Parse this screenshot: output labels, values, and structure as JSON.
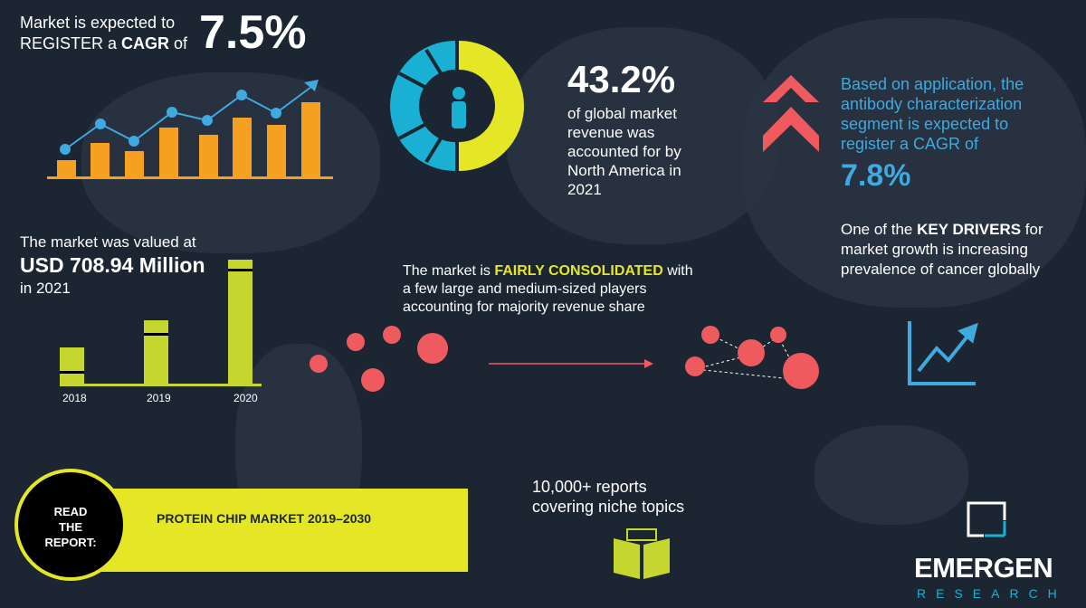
{
  "cagr": {
    "line1": "Market is expected to",
    "line2_a": "REGISTER a ",
    "line2_b": "CAGR",
    "line2_c": " of",
    "value": "7.5%"
  },
  "share": {
    "value": "43.2%",
    "lines": [
      "of global market",
      "revenue was",
      "accounted for by",
      "North America in",
      "2021"
    ],
    "fraction": 0.432
  },
  "application": {
    "lines": [
      "Based on application, the",
      "antibody characterization",
      "segment is expected to",
      "register a CAGR of"
    ],
    "value": "7.8%"
  },
  "drivers": {
    "a": "One of the ",
    "b": "KEY DRIVERS",
    "c": " for",
    "line2": "market growth is increasing",
    "line3": "prevalence of cancer globally"
  },
  "valued": {
    "line1": "The market was valued at",
    "line2": "USD 708.94 Million",
    "line3": "in 2021"
  },
  "years": [
    "2018",
    "2019",
    "2020"
  ],
  "consolidated": {
    "a": "The market is ",
    "b": "FAIRLY CONSOLIDATED",
    "c": " with",
    "line2": "a few large and medium-sized players",
    "line3": "accounting for majority revenue share"
  },
  "read": {
    "line1": "READ",
    "line2": "THE",
    "line3": "REPORT:",
    "title": "PROTEIN CHIP MARKET 2019–2030"
  },
  "reports": {
    "line1": "10,000+ reports",
    "line2": "covering niche topics"
  },
  "logo": {
    "name": "EMERGEN",
    "sub": "RESEARCH"
  },
  "colors": {
    "bg": "#1c2632",
    "orange": "#f5a020",
    "blue": "#3fa9e0",
    "yellow": "#e4e626",
    "lime": "#c5d62f",
    "red": "#ef5a5f",
    "teal": "#1ab0d3"
  }
}
